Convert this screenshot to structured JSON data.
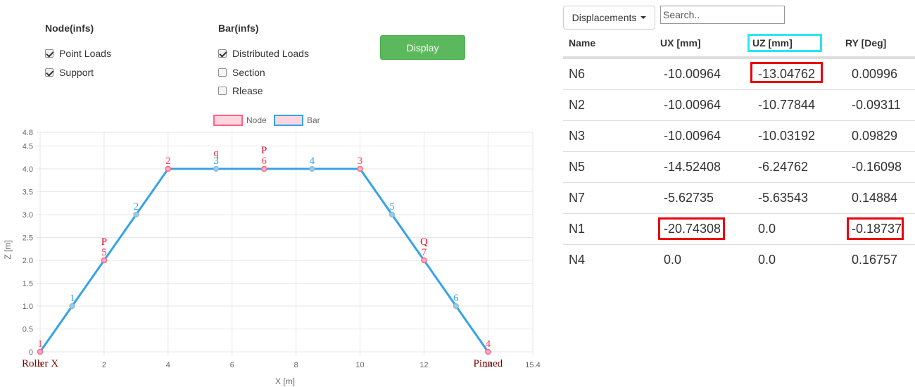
{
  "node_group": {
    "title": "Node(infs)",
    "options": [
      {
        "label": "Point Loads",
        "checked": true
      },
      {
        "label": "Support",
        "checked": true
      }
    ]
  },
  "bar_group": {
    "title": "Bar(infs)",
    "options": [
      {
        "label": "Distributed Loads",
        "checked": true
      },
      {
        "label": "Section",
        "checked": false
      },
      {
        "label": "Rlease",
        "checked": false
      }
    ]
  },
  "display_button": {
    "label": "Display",
    "color": "#5cb85c"
  },
  "results": {
    "dropdown_label": "Displacements",
    "search_placeholder": "Search..",
    "columns": [
      "Name",
      "UX [mm]",
      "UZ [mm]",
      "RY [Deg]"
    ],
    "rows": [
      [
        "N6",
        "-10.00964",
        "-13.04762",
        "0.00996"
      ],
      [
        "N2",
        "-10.00964",
        "-10.77844",
        "-0.09311"
      ],
      [
        "N3",
        "-10.00964",
        "-10.03192",
        "0.09829"
      ],
      [
        "N5",
        "-14.52408",
        "-6.24762",
        "-0.16098"
      ],
      [
        "N7",
        "-5.62735",
        "-5.63543",
        "0.14884"
      ],
      [
        "N1",
        "-20.74308",
        "0.0",
        "-0.18737"
      ],
      [
        "N4",
        "0.0",
        "0.0",
        "0.16757"
      ]
    ],
    "highlight_colors": {
      "max_value": "#e8000b",
      "column": "#29e6f0"
    }
  },
  "chart_data": {
    "type": "scatter",
    "legend": [
      {
        "name": "Node",
        "color": "#ff6384"
      },
      {
        "name": "Bar",
        "color": "#36a2eb"
      }
    ],
    "legend_position": "top",
    "grid": true,
    "xlabel": "X [m]",
    "ylabel": "Z [m]",
    "xlim": [
      0,
      15.4
    ],
    "ylim": [
      0,
      4.8
    ],
    "x_ticks": [
      "0",
      "2",
      "4",
      "6",
      "8",
      "10",
      "12",
      "14",
      "15.4"
    ],
    "y_ticks": [
      "0",
      "0.5",
      "1.0",
      "1.5",
      "2.0",
      "2.5",
      "3.0",
      "3.5",
      "4.0",
      "4.5",
      "4.8"
    ],
    "bar_path": [
      [
        0,
        0
      ],
      [
        1,
        1
      ],
      [
        2,
        2
      ],
      [
        3,
        3
      ],
      [
        4,
        4
      ],
      [
        5.5,
        4
      ],
      [
        7,
        4
      ],
      [
        8.5,
        4
      ],
      [
        10,
        4
      ],
      [
        11,
        3
      ],
      [
        12,
        2
      ],
      [
        13,
        1
      ],
      [
        14,
        0
      ]
    ],
    "nodes": [
      {
        "label": "1",
        "x": 0,
        "z": 0,
        "support": "Roller X"
      },
      {
        "label": "5",
        "x": 2,
        "z": 2,
        "load": "P"
      },
      {
        "label": "2",
        "x": 4,
        "z": 4
      },
      {
        "label": "6",
        "x": 7,
        "z": 4,
        "load": "P"
      },
      {
        "label": "3",
        "x": 10,
        "z": 4
      },
      {
        "label": "7",
        "x": 12,
        "z": 2,
        "load": "Q"
      },
      {
        "label": "4",
        "x": 14,
        "z": 0,
        "support": "Pinned"
      }
    ],
    "bar_points": [
      {
        "label": "1",
        "x": 1,
        "z": 1
      },
      {
        "label": "2",
        "x": 3,
        "z": 3
      },
      {
        "label": "3",
        "x": 5.5,
        "z": 4,
        "load": "q"
      },
      {
        "label": "4",
        "x": 8.5,
        "z": 4
      },
      {
        "label": "5",
        "x": 11,
        "z": 3
      },
      {
        "label": "6",
        "x": 13,
        "z": 1
      }
    ]
  }
}
